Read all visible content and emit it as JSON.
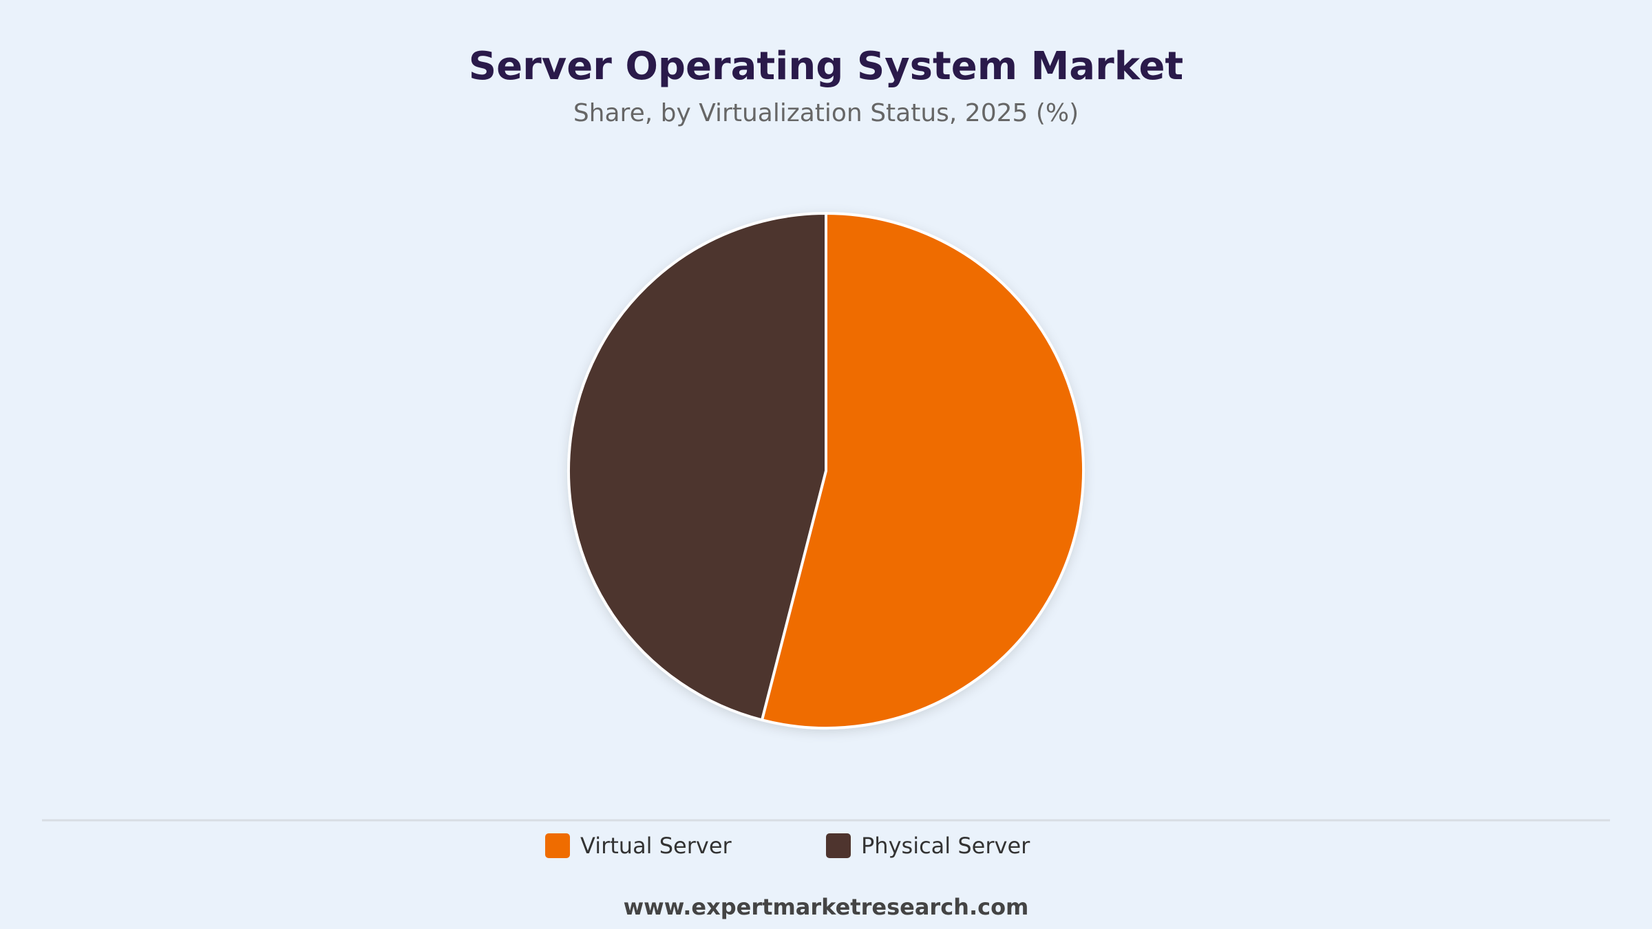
{
  "chart_data": {
    "type": "pie",
    "title": "Server Operating System Market",
    "subtitle": "Share, by Virtualization Status, 2025 (%)",
    "categories": [
      "Virtual Server",
      "Physical Server"
    ],
    "values": [
      54,
      46
    ],
    "colors": [
      "#ef6c00",
      "#4e342e"
    ],
    "source": "www.expertmarketresearch.com"
  }
}
